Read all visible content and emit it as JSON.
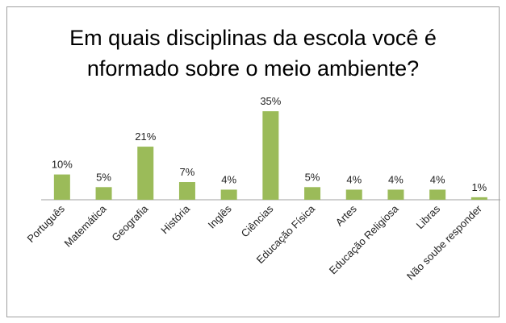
{
  "chart_data": {
    "type": "bar",
    "title": "Em quais disciplinas da escola você é nformado sobre o meio ambiente?",
    "categories": [
      "Português",
      "Matemática",
      "Geografia",
      "História",
      "Inglês",
      "Ciências",
      "Educação Física",
      "Artes",
      "Educação Religiosa",
      "Libras",
      "Não soube responder"
    ],
    "values": [
      10,
      5,
      21,
      7,
      4,
      35,
      5,
      4,
      4,
      4,
      1
    ],
    "value_labels": [
      "10%",
      "5%",
      "21%",
      "7%",
      "4%",
      "35%",
      "5%",
      "4%",
      "4%",
      "4%",
      "1%"
    ],
    "color": "#9bbb59"
  }
}
